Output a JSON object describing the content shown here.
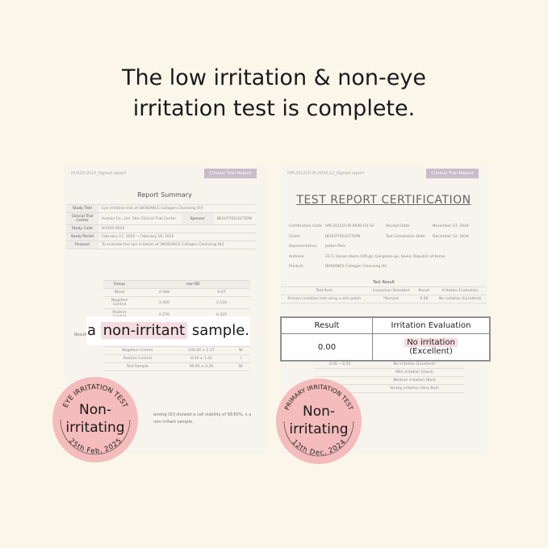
{
  "headline": {
    "line1": "The low irritation & non-eye",
    "line2": "irritation test is complete."
  },
  "left_doc": {
    "code": "HI-R25-0010_Signed report",
    "tag": "Clinical Trial Report",
    "title": "Report Summary",
    "rows": [
      [
        "Study Title",
        "Eye irritation test of [BIODANCE Collagen Cleansing Oil]"
      ],
      [
        "Clinical Trial Center",
        "Human Co., Ltd. Skin Clinical Trial Center",
        "Sponsor",
        "BEAUTYSELECTION"
      ],
      [
        "Study Code",
        "HI-R25-0010"
      ],
      [
        "Study Period",
        "February 17, 2025 ~ February 19, 2025"
      ],
      [
        "Purpose",
        "To evaluate the eye irritation of [BIODANCE Collagen Cleansing Oil]"
      ]
    ],
    "od_table": {
      "headers": [
        "Group",
        "raw-OD"
      ],
      "rows": [
        [
          "Blank",
          "0.068",
          "0.07"
        ],
        [
          "Negative Control",
          "2.456",
          "2.534"
        ],
        [
          "Positive Control",
          "0.276",
          "0.325"
        ]
      ]
    },
    "via_rows": [
      [
        "Negative Control",
        "100.00 ± 2.27",
        "NI"
      ],
      [
        "Positive Control",
        "8.54 ± 1.42",
        "I"
      ],
      [
        "Test Sample",
        "99.65 ± 0.20",
        "NI"
      ]
    ],
    "result_label": "Result",
    "conclusion": "ansing Oil] showed a cell viability of 99.65%, s a non-irritant sample."
  },
  "left_overlay": {
    "pre": "a",
    "highlight": "non-irritant",
    "post": "sample."
  },
  "left_badge": {
    "arc_top": "EYE IRRITATION TEST",
    "main1": "Non-",
    "main2": "irritating",
    "arc_bottom": "25th Feb, 2025"
  },
  "right_doc": {
    "code": "HM-241210-IR-0036-12_Signed report",
    "tag": "Clinical Trial Report",
    "title": "TEST REPORT CERTIFICATION",
    "info": [
      [
        "Certification Code:",
        "HM-241210-IR-0036-CD-12",
        "Receipt Date:",
        "November 27, 2024"
      ],
      [
        "Client:",
        "BEAUTYSELECTION",
        "Test Completion Date:",
        "December 12, 2024"
      ],
      [
        "Representative:",
        "Jaebin Park"
      ],
      [
        "Address:",
        "22-5, Dosan-daero 100-gil, Gangnam-gu, Seoul, Republic of Korea"
      ],
      [
        "Product:",
        "BIODANCE Collagen Cleansing Oil"
      ]
    ],
    "test_result_label": "Test Result",
    "tr_headers": [
      "Test Item",
      "Inspection Standard",
      "Result",
      "Irritation Evaluation"
    ],
    "tr_row": [
      "Primary irritation test using a skin patch",
      "*Remark",
      "0.00",
      "No irritation (Excellent)"
    ],
    "scale": [
      [
        "0.00 ~ 0.25",
        "No irritation (Excellent)"
      ],
      [
        "",
        "Mild irritation (Good)"
      ],
      [
        "",
        "Medium irritation (Bad)"
      ],
      [
        "",
        "Strong irritation (Very Bad)"
      ]
    ]
  },
  "right_overlay": {
    "h1": "Result",
    "h2": "Irritation Evaluation",
    "result": "0.00",
    "eval1": "No irritation",
    "eval2": "(Excellent)"
  },
  "right_badge": {
    "arc_top": "PRIMARY IRRITATION TEST",
    "main1": "Non-",
    "main2": "irritating",
    "arc_bottom": "12th Dec, 2024"
  },
  "colors": {
    "background": "#fbf6ea",
    "badge": "#f4bcbc",
    "highlight": "#f6dce2",
    "tag": "#c9bccb"
  }
}
